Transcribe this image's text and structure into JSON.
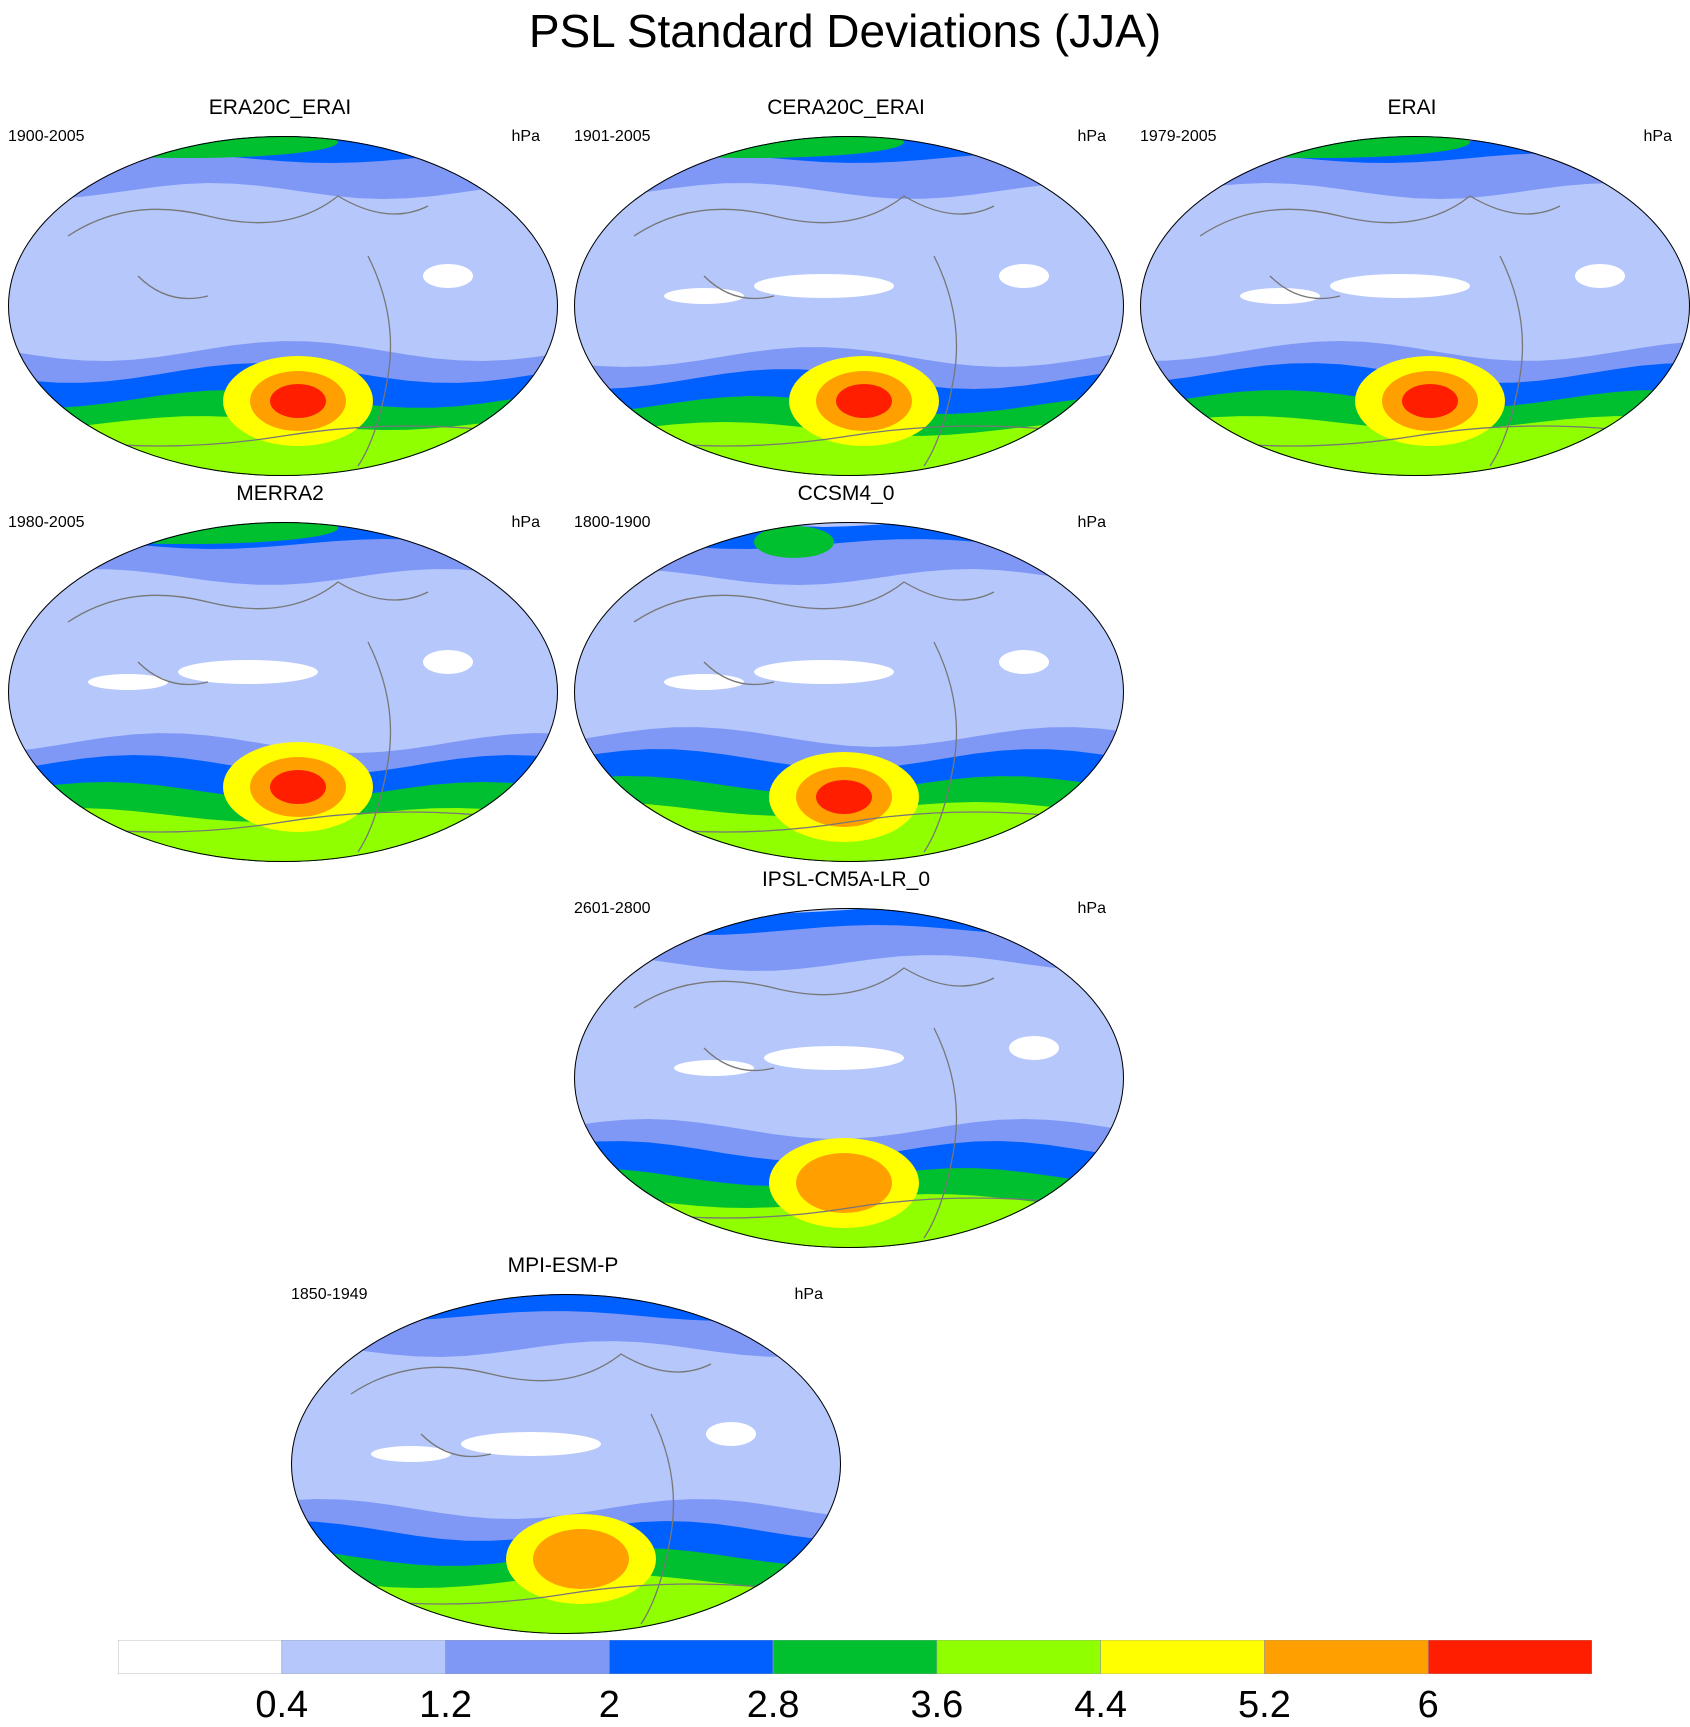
{
  "figure_title": "PSL Standard Deviations (JJA)",
  "colors": {
    "levels": [
      "#ffffff",
      "#b5c7fb",
      "#7f98f6",
      "#0060ff",
      "#00c030",
      "#90ff00",
      "#ffff00",
      "#ffa000",
      "#ff1e00"
    ],
    "coast": "#777777"
  },
  "panels": [
    {
      "title": "ERA20C_ERAI",
      "years": "1900-2005",
      "units": "hPa"
    },
    {
      "title": "CERA20C_ERAI",
      "years": "1901-2005",
      "units": "hPa"
    },
    {
      "title": "ERAI",
      "years": "1979-2005",
      "units": "hPa"
    },
    {
      "title": "MERRA2",
      "years": "1980-2005",
      "units": "hPa"
    },
    {
      "title": "CCSM4_0",
      "years": "1800-1900",
      "units": "hPa"
    },
    {
      "title": "IPSL-CM5A-LR_0",
      "years": "2601-2800",
      "units": "hPa"
    },
    {
      "title": "MPI-ESM-P",
      "years": "1850-1949",
      "units": "hPa"
    }
  ],
  "colorbar": {
    "labels": [
      "0.4",
      "1.2",
      "2",
      "2.8",
      "3.6",
      "4.4",
      "5.2",
      "6"
    ]
  },
  "chart_data": {
    "type": "heatmap",
    "title": "PSL Standard Deviations (JJA)",
    "units": "hPa",
    "projection": "Robinson, global, centered on Pacific",
    "contour_levels": [
      0.4,
      1.2,
      2,
      2.8,
      3.6,
      4.4,
      5.2,
      6
    ],
    "series": [
      {
        "name": "ERA20C_ERAI",
        "period": "1900-2005",
        "max_level": 6,
        "max_region": "Southern Ocean south of Pacific"
      },
      {
        "name": "CERA20C_ERAI",
        "period": "1901-2005",
        "max_level": 6,
        "max_region": "Southern Ocean south of Pacific"
      },
      {
        "name": "ERAI",
        "period": "1979-2005",
        "max_level": 6,
        "max_region": "Southern Ocean south of Pacific"
      },
      {
        "name": "MERRA2",
        "period": "1980-2005",
        "max_level": 6,
        "max_region": "Southern Ocean south of Pacific"
      },
      {
        "name": "CCSM4_0",
        "period": "1800-1900",
        "max_level": 6,
        "max_region": "Antarctic coast"
      },
      {
        "name": "IPSL-CM5A-LR_0",
        "period": "2601-2800",
        "max_level": 5.2,
        "max_region": "Antarctic coast"
      },
      {
        "name": "MPI-ESM-P",
        "period": "1850-1949",
        "max_level": 5.2,
        "max_region": "Southern Ocean south of Pacific"
      }
    ]
  }
}
